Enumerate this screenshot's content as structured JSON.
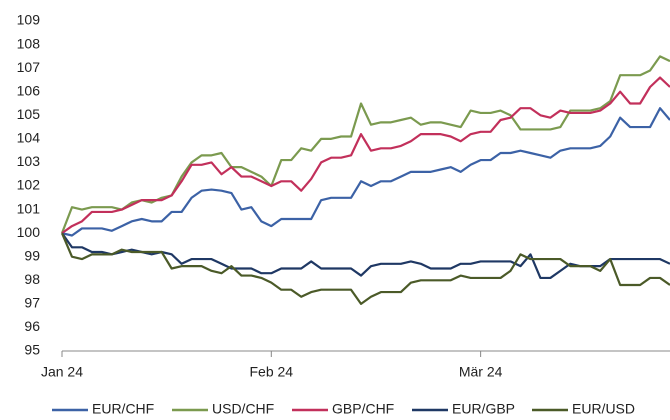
{
  "chart_data": {
    "type": "line",
    "categories": [
      "Jan 24",
      null,
      null,
      null,
      null,
      null,
      null,
      null,
      null,
      null,
      null,
      null,
      null,
      null,
      null,
      null,
      null,
      null,
      null,
      null,
      null,
      "Feb 24",
      null,
      null,
      null,
      null,
      null,
      null,
      null,
      null,
      null,
      null,
      null,
      null,
      null,
      null,
      null,
      null,
      null,
      null,
      null,
      null,
      "Mär 24",
      null,
      null,
      null,
      null,
      null,
      null,
      null,
      null,
      null,
      null,
      null,
      null,
      null,
      null,
      null,
      null,
      null,
      null,
      null
    ],
    "ylim": [
      95,
      109
    ],
    "yticks": [
      95,
      96,
      97,
      98,
      99,
      100,
      101,
      102,
      103,
      104,
      105,
      106,
      107,
      108,
      109
    ],
    "grid": false,
    "legend": "bottom",
    "series": [
      {
        "name": "EUR/CHF",
        "color": "#3c62a6",
        "values": [
          100,
          99.9,
          100.2,
          100.2,
          100.2,
          100.1,
          100.3,
          100.5,
          100.6,
          100.5,
          100.5,
          100.9,
          100.9,
          101.5,
          101.8,
          101.85,
          101.8,
          101.7,
          101.0,
          101.1,
          100.5,
          100.3,
          100.6,
          100.6,
          100.6,
          100.6,
          101.4,
          101.5,
          101.5,
          101.5,
          102.2,
          102.0,
          102.2,
          102.2,
          102.4,
          102.6,
          102.6,
          102.6,
          102.7,
          102.8,
          102.6,
          102.9,
          103.1,
          103.1,
          103.4,
          103.4,
          103.5,
          103.4,
          103.3,
          103.2,
          103.5,
          103.6,
          103.6,
          103.6,
          103.7,
          104.1,
          104.9,
          104.5,
          104.5,
          104.5,
          105.3,
          104.8
        ]
      },
      {
        "name": "USD/CHF",
        "color": "#7b9a4f",
        "values": [
          100,
          101.1,
          101.0,
          101.1,
          101.1,
          101.1,
          101.0,
          101.3,
          101.4,
          101.3,
          101.5,
          101.6,
          102.4,
          103.0,
          103.3,
          103.3,
          103.4,
          102.8,
          102.8,
          102.6,
          102.4,
          102.0,
          103.1,
          103.1,
          103.6,
          103.5,
          104.0,
          104.0,
          104.1,
          104.1,
          105.5,
          104.6,
          104.7,
          104.7,
          104.8,
          104.9,
          104.6,
          104.7,
          104.7,
          104.6,
          104.5,
          105.2,
          105.1,
          105.1,
          105.2,
          105.0,
          104.4,
          104.4,
          104.4,
          104.4,
          104.5,
          105.2,
          105.2,
          105.2,
          105.3,
          105.6,
          106.7,
          106.7,
          106.7,
          106.9,
          107.5,
          107.3
        ]
      },
      {
        "name": "GBP/CHF",
        "color": "#c2305b",
        "values": [
          100,
          100.3,
          100.5,
          100.9,
          100.9,
          100.9,
          101.0,
          101.2,
          101.4,
          101.4,
          101.4,
          101.6,
          102.2,
          102.9,
          102.9,
          103.0,
          102.5,
          102.8,
          102.4,
          102.4,
          102.2,
          102.0,
          102.2,
          102.2,
          101.8,
          102.3,
          103.0,
          103.2,
          103.2,
          103.3,
          104.2,
          103.5,
          103.6,
          103.6,
          103.7,
          103.9,
          104.2,
          104.2,
          104.2,
          104.1,
          103.9,
          104.2,
          104.3,
          104.3,
          104.8,
          104.9,
          105.3,
          105.3,
          105.0,
          104.9,
          105.2,
          105.1,
          105.1,
          105.1,
          105.2,
          105.5,
          106.0,
          105.5,
          105.5,
          106.2,
          106.6,
          106.2
        ]
      },
      {
        "name": "EUR/GBP",
        "color": "#1f3864",
        "values": [
          100,
          99.4,
          99.4,
          99.2,
          99.2,
          99.1,
          99.2,
          99.3,
          99.2,
          99.1,
          99.2,
          99.1,
          98.7,
          98.9,
          98.9,
          98.9,
          98.7,
          98.5,
          98.5,
          98.5,
          98.3,
          98.3,
          98.5,
          98.5,
          98.5,
          98.8,
          98.5,
          98.5,
          98.5,
          98.5,
          98.2,
          98.6,
          98.7,
          98.7,
          98.7,
          98.8,
          98.7,
          98.5,
          98.5,
          98.5,
          98.7,
          98.7,
          98.8,
          98.8,
          98.8,
          98.8,
          98.6,
          99.1,
          98.1,
          98.1,
          98.4,
          98.7,
          98.6,
          98.6,
          98.6,
          98.9,
          98.9,
          98.9,
          98.9,
          98.9,
          98.9,
          98.7
        ]
      },
      {
        "name": "EUR/USD",
        "color": "#4b5a28",
        "values": [
          100,
          99.0,
          98.9,
          99.1,
          99.1,
          99.1,
          99.3,
          99.2,
          99.2,
          99.2,
          99.2,
          98.5,
          98.6,
          98.6,
          98.6,
          98.4,
          98.3,
          98.6,
          98.2,
          98.2,
          98.1,
          97.9,
          97.6,
          97.6,
          97.3,
          97.5,
          97.6,
          97.6,
          97.6,
          97.6,
          97.0,
          97.3,
          97.5,
          97.5,
          97.5,
          97.9,
          98.0,
          98.0,
          98.0,
          98.0,
          98.2,
          98.1,
          98.1,
          98.1,
          98.1,
          98.4,
          99.1,
          98.9,
          98.9,
          98.9,
          98.9,
          98.6,
          98.6,
          98.6,
          98.4,
          98.9,
          97.8,
          97.8,
          97.8,
          98.1,
          98.1,
          97.8
        ]
      }
    ]
  }
}
